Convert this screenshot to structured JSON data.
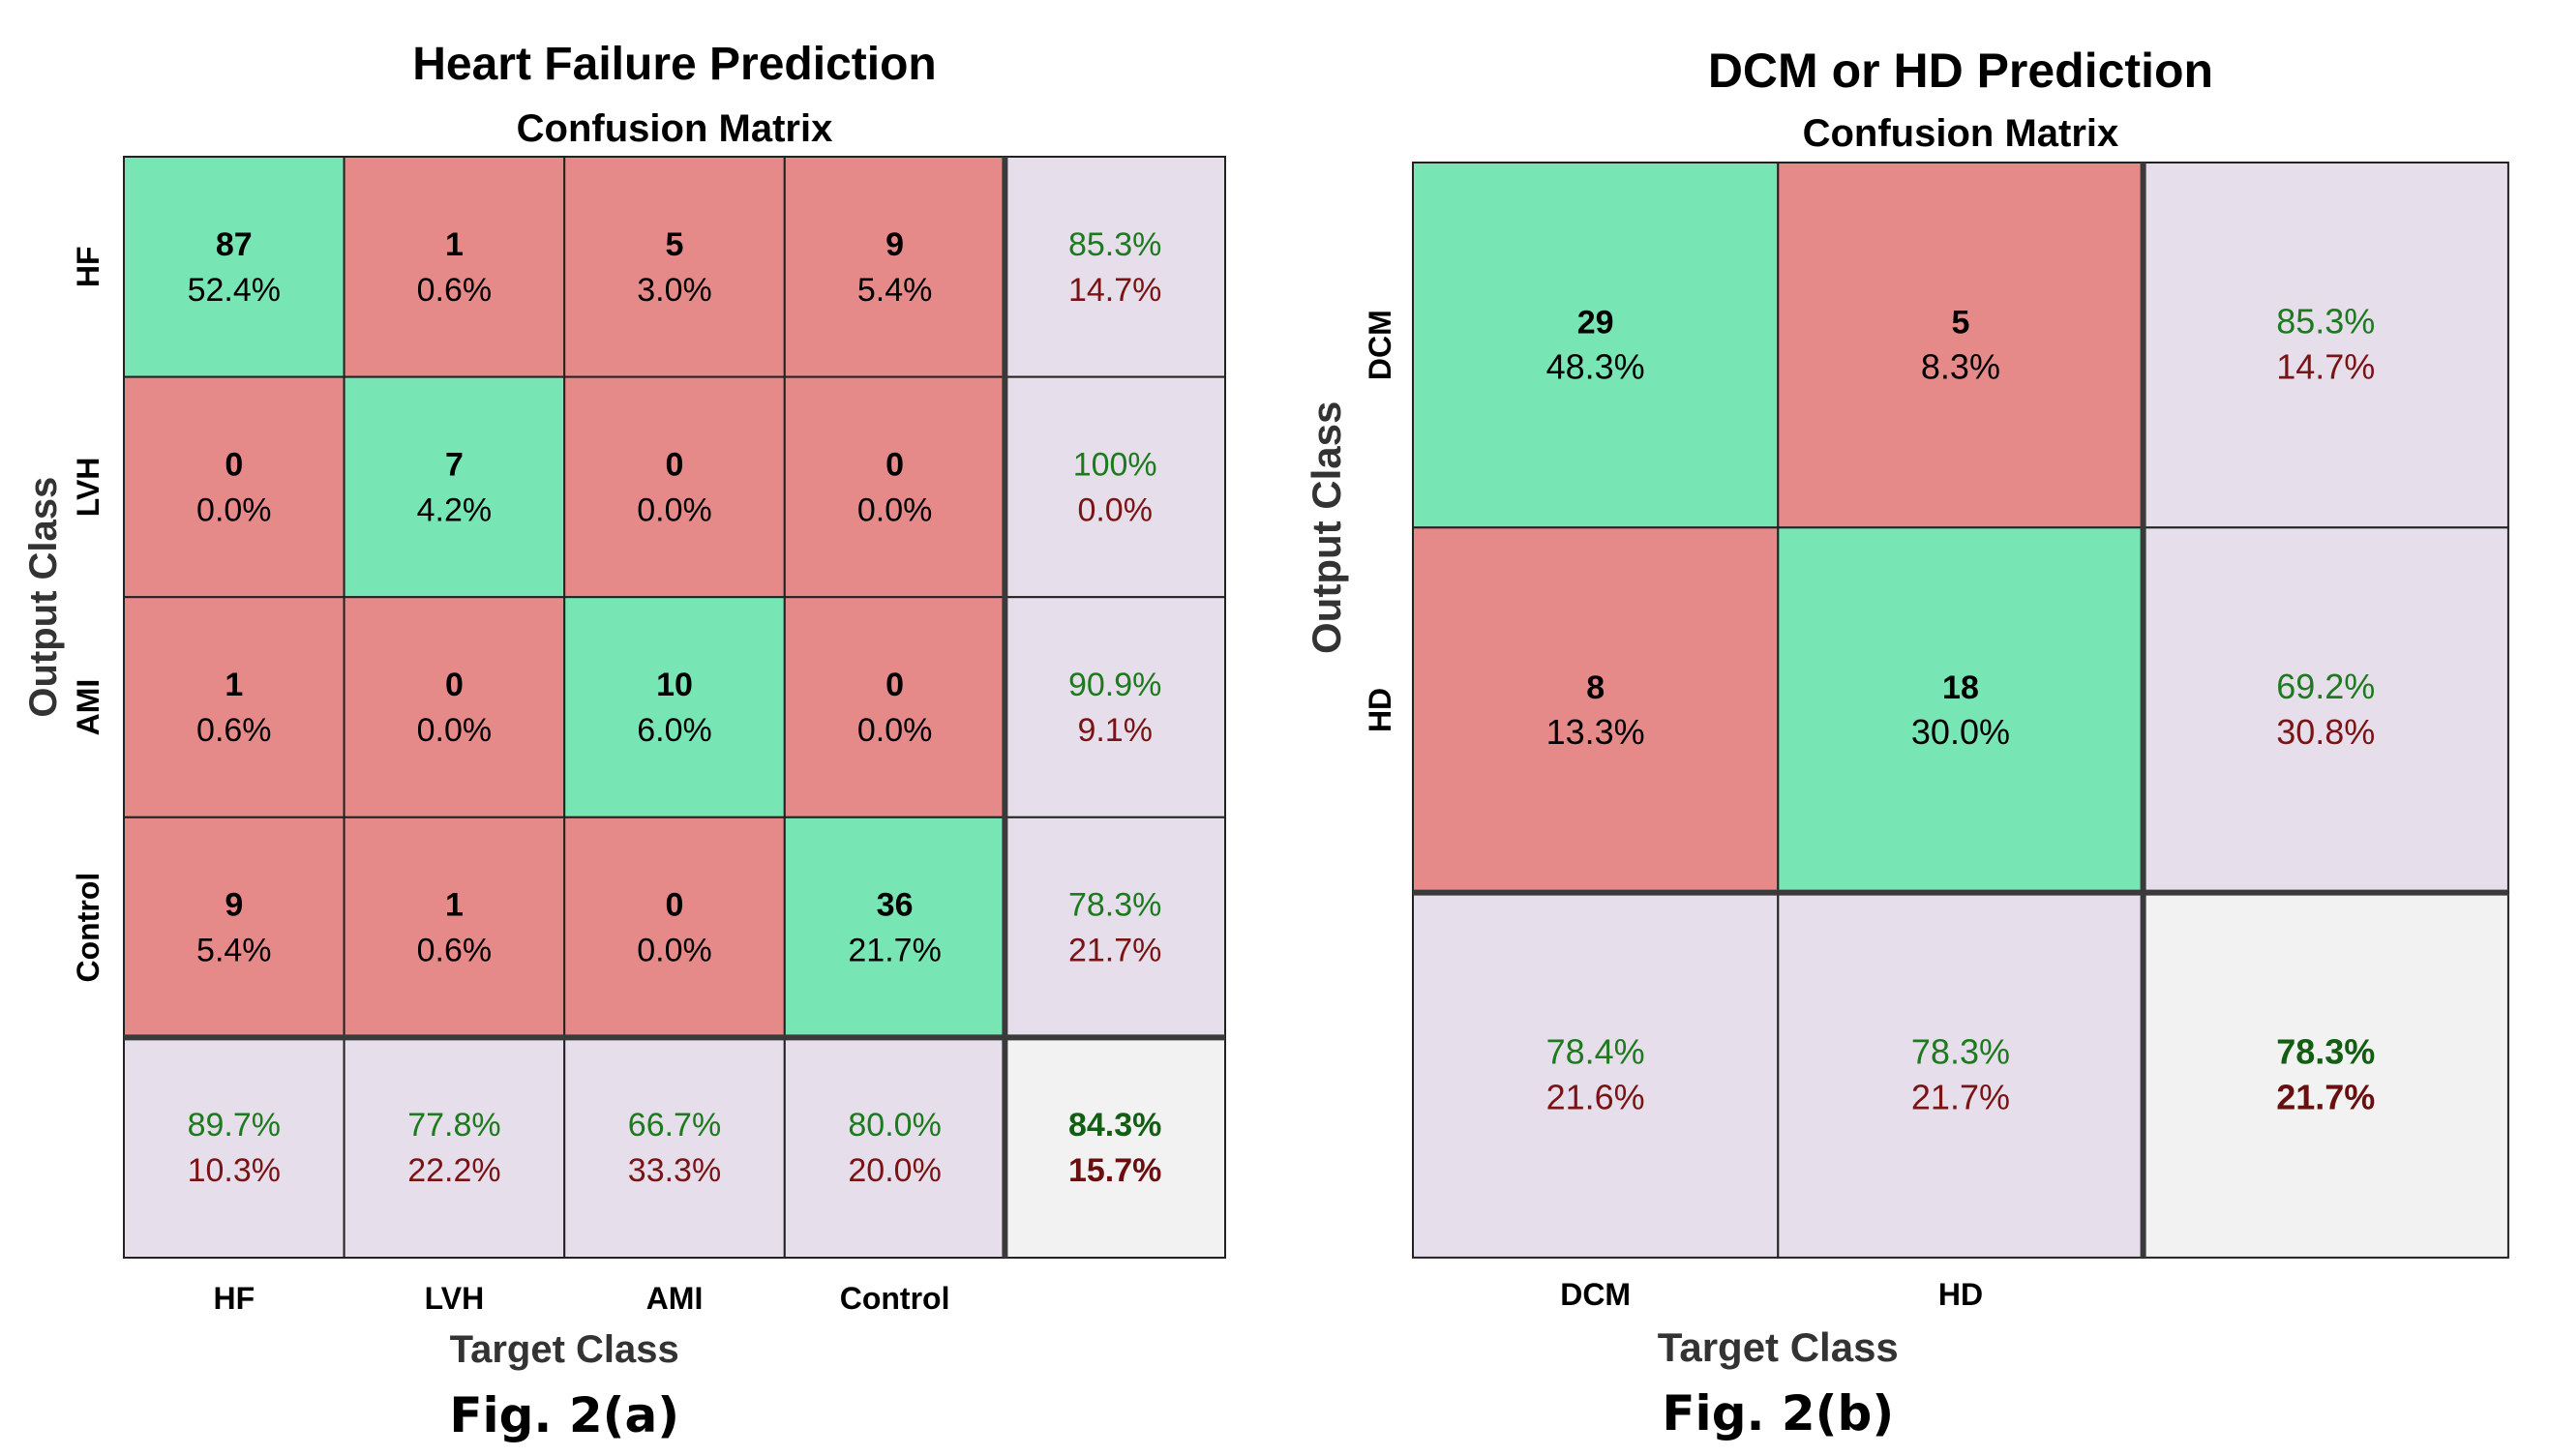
{
  "colors": {
    "correct": "#78E5B4",
    "incorrect": "#E68A89",
    "summary": "#E6DEEB",
    "overall": "#F2F2F2",
    "pct_good": "#1E7A1E",
    "pct_bad": "#7A1414",
    "overall_good": "#135E13",
    "overall_bad": "#6A0F0F",
    "grid": "#222222",
    "text": "#000000"
  },
  "chart_data": [
    {
      "type": "heatmap",
      "title": "Heart Failure Prediction",
      "subtitle": "Confusion Matrix",
      "xlabel": "Target Class",
      "ylabel": "Output Class",
      "caption": "Fig. 2(a)",
      "classes": [
        "HF",
        "LVH",
        "AMI",
        "Control"
      ],
      "counts": [
        [
          87,
          1,
          5,
          9
        ],
        [
          0,
          7,
          0,
          0
        ],
        [
          1,
          0,
          10,
          0
        ],
        [
          9,
          1,
          0,
          36
        ]
      ],
      "percents": [
        [
          "52.4%",
          "0.6%",
          "3.0%",
          "5.4%"
        ],
        [
          "0.0%",
          "4.2%",
          "0.0%",
          "0.0%"
        ],
        [
          "0.6%",
          "0.0%",
          "6.0%",
          "0.0%"
        ],
        [
          "5.4%",
          "0.6%",
          "0.0%",
          "21.7%"
        ]
      ],
      "row_summary": [
        [
          "85.3%",
          "14.7%"
        ],
        [
          "100%",
          "0.0%"
        ],
        [
          "90.9%",
          "9.1%"
        ],
        [
          "78.3%",
          "21.7%"
        ]
      ],
      "col_summary": [
        [
          "89.7%",
          "10.3%"
        ],
        [
          "77.8%",
          "22.2%"
        ],
        [
          "66.7%",
          "33.3%"
        ],
        [
          "80.0%",
          "20.0%"
        ]
      ],
      "overall": [
        "84.3%",
        "15.7%"
      ]
    },
    {
      "type": "heatmap",
      "title": "DCM or HD Prediction",
      "subtitle": "Confusion Matrix",
      "xlabel": "Target Class",
      "ylabel": "Output Class",
      "caption": "Fig. 2(b)",
      "classes": [
        "DCM",
        "HD"
      ],
      "counts": [
        [
          29,
          5
        ],
        [
          8,
          18
        ]
      ],
      "percents": [
        [
          "48.3%",
          "8.3%"
        ],
        [
          "13.3%",
          "30.0%"
        ]
      ],
      "row_summary": [
        [
          "85.3%",
          "14.7%"
        ],
        [
          "69.2%",
          "30.8%"
        ]
      ],
      "col_summary": [
        [
          "78.4%",
          "21.6%"
        ],
        [
          "78.3%",
          "21.7%"
        ]
      ],
      "overall": [
        "78.3%",
        "21.7%"
      ]
    }
  ]
}
